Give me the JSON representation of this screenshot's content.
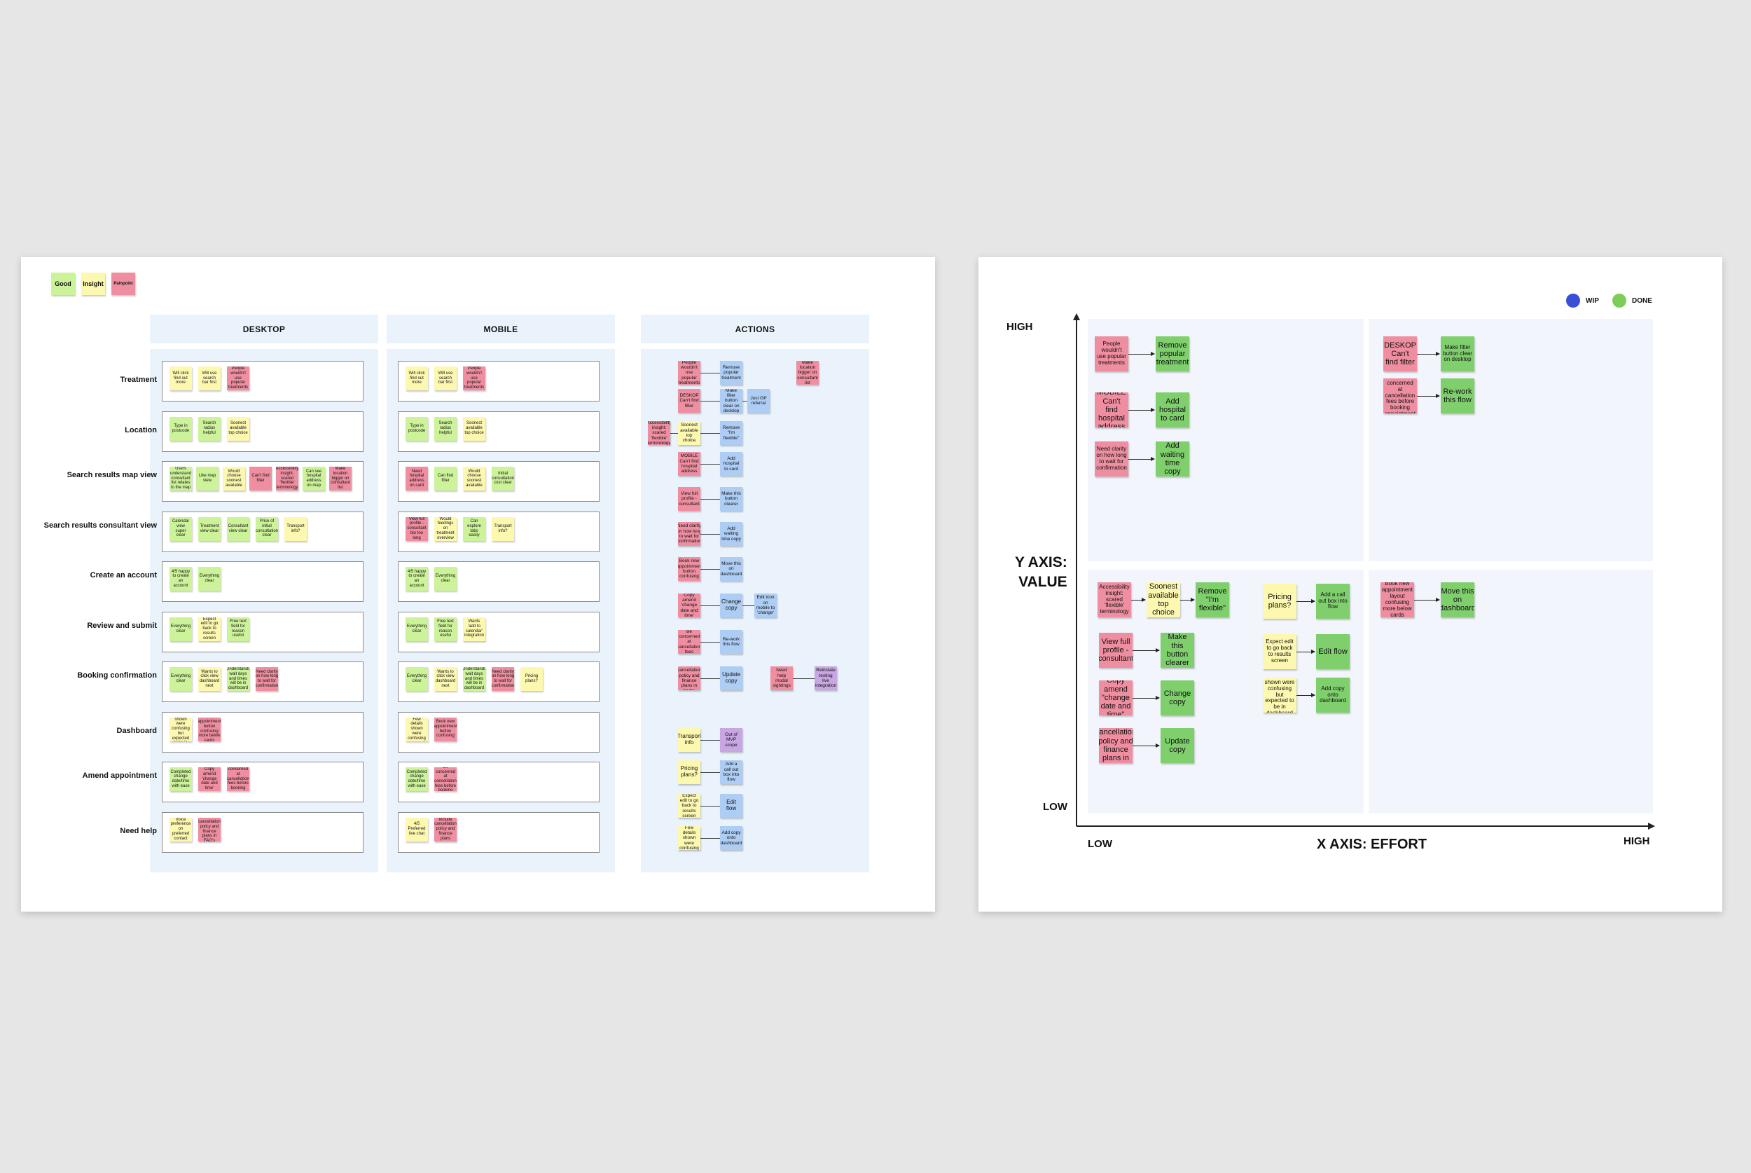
{
  "left_board": {
    "legend": [
      {
        "label": "Good",
        "color": "green"
      },
      {
        "label": "Insight",
        "color": "yellow"
      },
      {
        "label": "Painpoint",
        "color": "pink"
      }
    ],
    "columns": {
      "desktop": "DESKTOP",
      "mobile": "MOBILE",
      "actions": "ACTIONS"
    },
    "rows": [
      {
        "label": "Treatment",
        "desktop": [
          {
            "t": "Will click find out more",
            "c": "yellow"
          },
          {
            "t": "Will use search bar first",
            "c": "yellow"
          },
          {
            "t": "People wouldn't use popular treatments",
            "c": "pink"
          }
        ],
        "mobile": [
          {
            "t": "Will click find out more",
            "c": "yellow"
          },
          {
            "t": "Will use search bar first",
            "c": "yellow"
          },
          {
            "t": "People wouldn't use popular treatments",
            "c": "pink"
          }
        ]
      },
      {
        "label": "Location",
        "desktop": [
          {
            "t": "Type in postcode",
            "c": "green"
          },
          {
            "t": "Search radius helpful",
            "c": "green"
          },
          {
            "t": "Soonest available top choice",
            "c": "yellow"
          }
        ],
        "mobile": [
          {
            "t": "Type in postcode",
            "c": "green"
          },
          {
            "t": "Search radius helpful",
            "c": "green"
          },
          {
            "t": "Soonest available top choice",
            "c": "yellow"
          }
        ]
      },
      {
        "label": "Search results map view",
        "desktop": [
          {
            "t": "Users understand consultant list relates to the map",
            "c": "green"
          },
          {
            "t": "Like map view",
            "c": "green"
          },
          {
            "t": "Would choose soonest available",
            "c": "yellow"
          },
          {
            "t": "Can't find filter",
            "c": "pink"
          },
          {
            "t": "Accessibility insight: scared 'flexible' terminology",
            "c": "pink"
          },
          {
            "t": "Can see hospital address on map",
            "c": "green"
          },
          {
            "t": "Make location bigger on consultant list",
            "c": "pink"
          }
        ],
        "mobile": [
          {
            "t": "Need hospital address on card",
            "c": "pink"
          },
          {
            "t": "Can find filter",
            "c": "green"
          },
          {
            "t": "Would choose soonest available",
            "c": "yellow"
          },
          {
            "t": "Initial consultation cost clear",
            "c": "green"
          }
        ]
      },
      {
        "label": "Search results consultant view",
        "desktop": [
          {
            "t": "Calendar view super clear",
            "c": "green"
          },
          {
            "t": "Treatment view clear",
            "c": "green"
          },
          {
            "t": "Consultant view clear",
            "c": "green"
          },
          {
            "t": "Price of initial consultation clear",
            "c": "green"
          },
          {
            "t": "Transport info?",
            "c": "yellow"
          }
        ],
        "mobile": [
          {
            "t": "View full profile - consultant bio too long",
            "c": "pink"
          },
          {
            "t": "Would feedings on treatment overview",
            "c": "yellow"
          },
          {
            "t": "Can explore tabs easily",
            "c": "green"
          },
          {
            "t": "Transport info?",
            "c": "yellow"
          }
        ]
      },
      {
        "label": "Create an account",
        "desktop": [
          {
            "t": "4/5 happy to create an account",
            "c": "green"
          },
          {
            "t": "Everything clear",
            "c": "green"
          }
        ],
        "mobile": [
          {
            "t": "4/5 happy to create an account",
            "c": "green"
          },
          {
            "t": "Everything clear",
            "c": "green"
          }
        ]
      },
      {
        "label": "Review and submit",
        "desktop": [
          {
            "t": "Everything clear",
            "c": "green"
          },
          {
            "t": "Expect edit to go back to results screen",
            "c": "yellow"
          },
          {
            "t": "Free text field for reason useful",
            "c": "green"
          }
        ],
        "mobile": [
          {
            "t": "Everything clear",
            "c": "green"
          },
          {
            "t": "Free text field for reason useful",
            "c": "green"
          },
          {
            "t": "Wants 'add to calendar' integration",
            "c": "yellow"
          }
        ]
      },
      {
        "label": "Booking confirmation",
        "desktop": [
          {
            "t": "Everything clear",
            "c": "green"
          },
          {
            "t": "Wants to click view dashboard next",
            "c": "yellow"
          },
          {
            "t": "Understands wait days and times will be in dashboard",
            "c": "green"
          },
          {
            "t": "Need clarity on how long to wait for confirmation",
            "c": "pink"
          }
        ],
        "mobile": [
          {
            "t": "Everything clear",
            "c": "green"
          },
          {
            "t": "Wants to click view dashboard next",
            "c": "yellow"
          },
          {
            "t": "Understands wait days and times will be in dashboard",
            "c": "green"
          },
          {
            "t": "Need clarity on how long to wait for confirmation",
            "c": "pink"
          },
          {
            "t": "Pricing plans?",
            "c": "yellow"
          }
        ]
      },
      {
        "label": "Dashboard",
        "desktop": [
          {
            "t": "Few details shown were confusing but expected to be in dashboard",
            "c": "yellow"
          },
          {
            "t": "Book new appointment button confusing more below cards",
            "c": "pink"
          }
        ],
        "mobile": [
          {
            "t": "Few details shown were confusing",
            "c": "yellow"
          },
          {
            "t": "Book new appointment button confusing",
            "c": "pink"
          }
        ]
      },
      {
        "label": "Amend appointment",
        "desktop": [
          {
            "t": "Completed change date/time with ease",
            "c": "green"
          },
          {
            "t": "Copy amend 'change date and time'",
            "c": "pink"
          },
          {
            "t": "Be concerned at cancellation fees before booking appointment",
            "c": "pink"
          }
        ],
        "mobile": [
          {
            "t": "Completed change date/time with ease",
            "c": "green"
          },
          {
            "t": "Be concerned at cancellation fees before booking",
            "c": "pink"
          }
        ]
      },
      {
        "label": "Need help",
        "desktop": [
          {
            "t": "Voice preference on preferred contact",
            "c": "yellow"
          },
          {
            "t": "Include cancellation policy and finance plans in FAQ's",
            "c": "pink"
          }
        ],
        "mobile": [
          {
            "t": "4/5 Preferred live chat",
            "c": "yellow"
          },
          {
            "t": "Include cancellation policy and finance plans",
            "c": "pink"
          }
        ]
      }
    ],
    "actions": [
      {
        "t": "People wouldn't use popular treatments",
        "c": "pink"
      },
      {
        "t": "Remove popular treatment",
        "c": "blue"
      },
      {
        "t": "Make location bigger on consultant list",
        "c": "pink"
      },
      {
        "t": "DESKOP Can't find filter",
        "c": "pink"
      },
      {
        "t": "Make filter button clear on desktop",
        "c": "blue"
      },
      {
        "t": "Just GP referral",
        "c": "blue"
      },
      {
        "t": "Accessibility insight: scared 'flexible' terminology",
        "c": "pink"
      },
      {
        "t": "Soonest available top choice",
        "c": "yellow"
      },
      {
        "t": "Remove \"I'm flexible\"",
        "c": "blue"
      },
      {
        "t": "MOBILE Can't find hospital address",
        "c": "pink"
      },
      {
        "t": "Add hospital to card",
        "c": "blue"
      },
      {
        "t": "View full profile - consultant",
        "c": "pink"
      },
      {
        "t": "Make this button clearer",
        "c": "blue"
      },
      {
        "t": "Need clarity on how long to wait for confirmation",
        "c": "pink"
      },
      {
        "t": "Add waiting time copy",
        "c": "blue"
      },
      {
        "t": "Book new appointment button confusing",
        "c": "pink"
      },
      {
        "t": "Move this on dashboard",
        "c": "blue"
      },
      {
        "t": "Copy amend 'change date and time'",
        "c": "pink"
      },
      {
        "t": "Change copy",
        "c": "blue"
      },
      {
        "t": "Edit icon on mobile to 'change'",
        "c": "blue"
      },
      {
        "t": "Be concerned at cancellation fees",
        "c": "pink"
      },
      {
        "t": "Re-work this flow",
        "c": "blue"
      },
      {
        "t": "Include cancellation policy and finance plans in FAQ's",
        "c": "pink"
      },
      {
        "t": "Update copy",
        "c": "blue"
      },
      {
        "t": "Need help modal sightings",
        "c": "pink"
      },
      {
        "t": "Reinstate testing live integration",
        "c": "purple"
      },
      {
        "t": "Transport info",
        "c": "yellow"
      },
      {
        "t": "Out of MVP scope",
        "c": "purple"
      },
      {
        "t": "Pricing plans?",
        "c": "yellow"
      },
      {
        "t": "Add a call out box into flow",
        "c": "blue"
      },
      {
        "t": "Expect edit to go back to results screen",
        "c": "yellow"
      },
      {
        "t": "Edit flow",
        "c": "blue"
      },
      {
        "t": "Few details shown were confusing",
        "c": "yellow"
      },
      {
        "t": "Add copy onto dashboard",
        "c": "blue"
      }
    ]
  },
  "right_board": {
    "legend": [
      {
        "label": "WIP",
        "color": "#3a4fd8"
      },
      {
        "label": "DONE",
        "color": "#7fcc5a"
      }
    ],
    "y_axis": {
      "title_line1": "Y AXIS:",
      "title_line2": "VALUE",
      "high": "HIGH",
      "low": "LOW"
    },
    "x_axis": {
      "title": "X AXIS: EFFORT",
      "low": "LOW",
      "high": "HIGH"
    },
    "quadrants": {
      "top_left": [
        {
          "from": "People wouldn't use popular treatments",
          "to": "Remove popular treatment"
        },
        {
          "from": "MOBILE Can't find hospital address",
          "to": "Add hospital to card"
        },
        {
          "from": "Need clarity on how long to wait for confirmation",
          "to": "Add waiting time copy"
        }
      ],
      "top_right": [
        {
          "from": "DESKOP Can't find filter",
          "to": "Make filter button clear on desktop"
        },
        {
          "from": "Be concerned at cancellation fees before booking appointment",
          "to": "Re-work this flow"
        }
      ],
      "bottom_left_a": [
        {
          "from": "Accessibility insight: scared 'flexible' terminology",
          "mid": "Soonest available top choice",
          "to": "Remove \"I'm flexible\""
        },
        {
          "from": "View full profile - consultant",
          "to": "Make this button clearer"
        },
        {
          "from": "Copy amend \"change date and time\"",
          "to": "Change copy"
        },
        {
          "from": "Include cancellation policy and finance plans in FAQ's",
          "to": "Update copy"
        }
      ],
      "bottom_left_b": [
        {
          "from": "Pricing plans?",
          "to": "Add a call out box into flow"
        },
        {
          "from": "Expect edit to go back to results screen",
          "to": "Edit flow"
        },
        {
          "from": "Few details shown were confusing but expected to be in dashboard",
          "to": "Add copy onto dashboard"
        }
      ],
      "bottom_right": [
        {
          "from": "Book new appointment layout confusing more below cards",
          "to": "Move this on dashboard"
        }
      ]
    }
  }
}
